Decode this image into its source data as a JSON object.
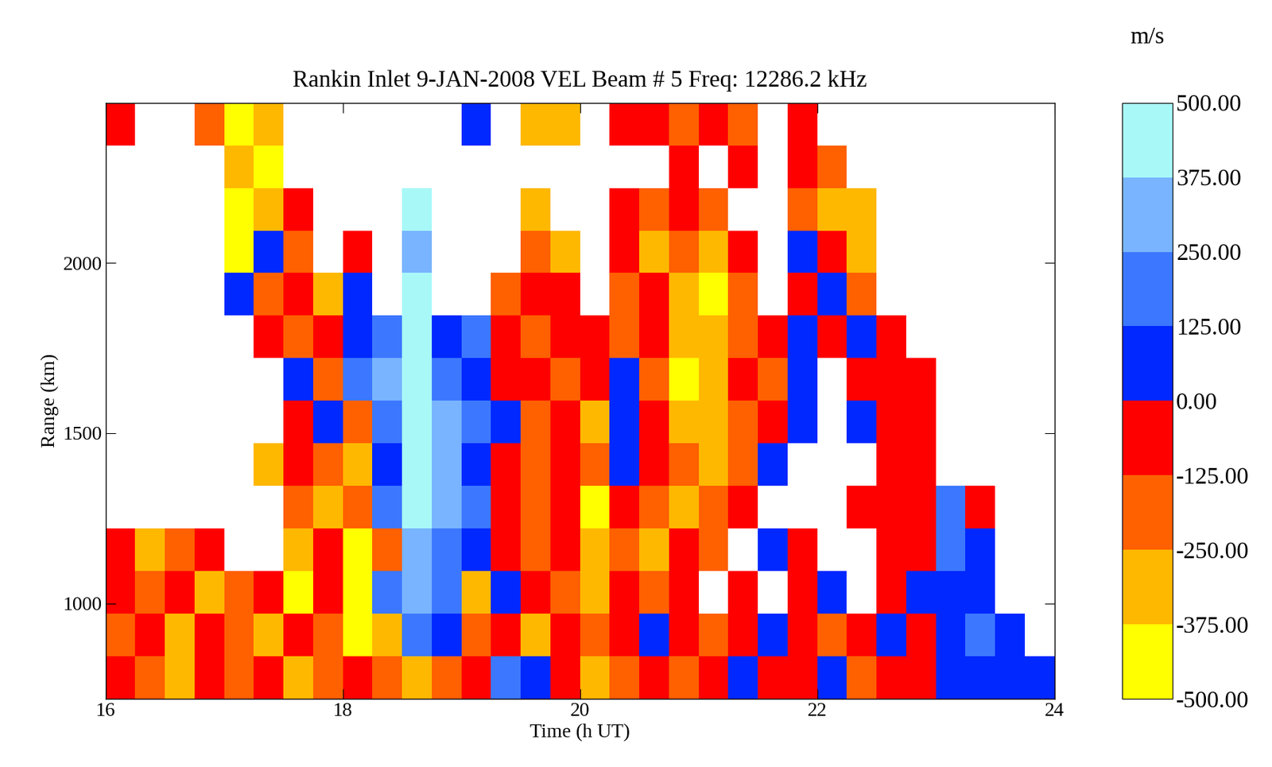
{
  "chart_data": {
    "type": "heatmap",
    "title": "Rankin Inlet 9-JAN-2008 VEL Beam # 5 Freq: 12286.2 kHz",
    "x_label": "Time (h UT)",
    "y_label": "Range (km)",
    "xlim": [
      16,
      24
    ],
    "xticks": [
      16,
      18,
      20,
      22,
      24
    ],
    "ylim": [
      720,
      2470
    ],
    "yticks": [
      1000,
      1500,
      2000
    ],
    "grid": false,
    "x_edges": [
      16,
      16.25,
      16.5,
      16.75,
      17,
      17.25,
      17.5,
      17.75,
      18,
      18.25,
      18.5,
      18.75,
      19,
      19.25,
      19.5,
      19.75,
      20,
      20.25,
      20.5,
      20.75,
      21,
      21.25,
      21.5,
      21.75,
      22,
      22.25,
      22.5,
      22.75,
      23,
      23.25,
      23.5,
      23.75,
      24
    ],
    "y_edges": [
      720,
      845,
      970,
      1095,
      1220,
      1345,
      1470,
      1595,
      1720,
      1845,
      1970,
      2095,
      2220,
      2345,
      2470
    ],
    "cells": [
      [
        -60,
        -190,
        -310,
        -60,
        -190,
        -60,
        -310,
        -190,
        -60,
        -190,
        -310,
        -190,
        -60,
        190,
        60,
        -60,
        -310,
        -190,
        -60,
        -190,
        -60,
        60,
        -60,
        -60,
        60,
        -190,
        -60,
        -60,
        60,
        60,
        60,
        60
      ],
      [
        -190,
        -60,
        -310,
        -60,
        -190,
        -310,
        -60,
        -190,
        -440,
        -310,
        190,
        60,
        -190,
        -60,
        -310,
        -60,
        -190,
        -60,
        60,
        -60,
        -190,
        -60,
        60,
        -60,
        -190,
        -60,
        60,
        -60,
        60,
        190,
        60,
        null
      ],
      [
        -60,
        -190,
        -60,
        -310,
        -190,
        -60,
        -440,
        -60,
        -440,
        190,
        310,
        190,
        -310,
        60,
        -60,
        -190,
        -310,
        -60,
        -190,
        -60,
        null,
        -60,
        null,
        -60,
        60,
        null,
        -60,
        60,
        60,
        60,
        null,
        null
      ],
      [
        -60,
        -310,
        -190,
        -60,
        null,
        null,
        -310,
        -60,
        -440,
        -190,
        310,
        190,
        60,
        -60,
        -190,
        -60,
        -310,
        -190,
        -310,
        -60,
        -190,
        null,
        60,
        -60,
        null,
        null,
        -60,
        -60,
        190,
        60,
        null,
        null
      ],
      [
        null,
        null,
        null,
        null,
        null,
        null,
        -190,
        -310,
        -190,
        190,
        440,
        310,
        190,
        -60,
        -190,
        -60,
        -440,
        -60,
        -190,
        -310,
        -190,
        -60,
        null,
        null,
        null,
        -60,
        -60,
        -60,
        190,
        -60,
        null,
        null
      ],
      [
        null,
        null,
        null,
        null,
        null,
        -310,
        -60,
        -190,
        -310,
        60,
        440,
        310,
        60,
        -60,
        -190,
        -60,
        -190,
        60,
        -60,
        -190,
        -310,
        -190,
        60,
        null,
        null,
        null,
        -60,
        -60,
        null,
        null,
        null,
        null
      ],
      [
        null,
        null,
        null,
        null,
        null,
        null,
        -60,
        60,
        -190,
        190,
        440,
        310,
        190,
        60,
        -190,
        -60,
        -310,
        60,
        -60,
        -310,
        -310,
        -190,
        -60,
        60,
        null,
        60,
        -60,
        -60,
        null,
        null,
        null,
        null
      ],
      [
        null,
        null,
        null,
        null,
        null,
        null,
        60,
        -190,
        190,
        310,
        440,
        190,
        60,
        -60,
        -60,
        -190,
        -60,
        60,
        -190,
        -440,
        -310,
        -60,
        -190,
        60,
        null,
        -60,
        -60,
        -60,
        null,
        null,
        null,
        null
      ],
      [
        null,
        null,
        null,
        null,
        null,
        -60,
        -190,
        -60,
        60,
        190,
        440,
        60,
        190,
        -60,
        -190,
        -60,
        -60,
        -190,
        -60,
        -310,
        -310,
        -190,
        -60,
        60,
        -60,
        60,
        -60,
        null,
        null,
        null,
        null,
        null
      ],
      [
        null,
        null,
        null,
        null,
        60,
        -190,
        -60,
        -310,
        60,
        null,
        440,
        null,
        null,
        -190,
        -60,
        -60,
        null,
        -190,
        -60,
        -310,
        -440,
        -190,
        null,
        -60,
        60,
        -190,
        null,
        null,
        null,
        null,
        null,
        null
      ],
      [
        null,
        null,
        null,
        null,
        -440,
        60,
        -190,
        null,
        -60,
        null,
        310,
        null,
        null,
        null,
        -190,
        -310,
        null,
        -60,
        -310,
        -190,
        -310,
        -60,
        null,
        60,
        -60,
        -310,
        null,
        null,
        null,
        null,
        null,
        null
      ],
      [
        null,
        null,
        null,
        null,
        -440,
        -310,
        -60,
        null,
        null,
        null,
        440,
        null,
        null,
        null,
        -310,
        null,
        null,
        -60,
        -190,
        -60,
        -190,
        null,
        null,
        -190,
        -310,
        -310,
        null,
        null,
        null,
        null,
        null,
        null
      ],
      [
        null,
        null,
        null,
        null,
        -310,
        -440,
        null,
        null,
        null,
        null,
        null,
        null,
        null,
        null,
        null,
        null,
        null,
        null,
        null,
        -60,
        null,
        -60,
        null,
        -60,
        -190,
        null,
        null,
        null,
        null,
        null,
        null,
        null
      ],
      [
        -60,
        null,
        null,
        -190,
        -440,
        -310,
        null,
        null,
        null,
        null,
        null,
        null,
        60,
        null,
        -310,
        -310,
        null,
        -60,
        -60,
        -190,
        -60,
        -190,
        null,
        -60,
        null,
        null,
        null,
        null,
        null,
        null,
        null,
        null
      ]
    ],
    "colorbar": {
      "label": "m/s",
      "range": [
        -500,
        500
      ],
      "colors": [
        "#ffff00",
        "#ffb800",
        "#ff6000",
        "#ff0000",
        "#0028ff",
        "#3c78ff",
        "#78b4ff",
        "#a8f8f8"
      ],
      "ticks": [
        {
          "value": -500,
          "label": "-500.00"
        },
        {
          "value": -375,
          "label": "-375.00"
        },
        {
          "value": -250,
          "label": "-250.00"
        },
        {
          "value": -125,
          "label": "-125.00"
        },
        {
          "value": 0,
          "label": "0.00"
        },
        {
          "value": 125,
          "label": "125.00"
        },
        {
          "value": 250,
          "label": "250.00"
        },
        {
          "value": 375,
          "label": "375.00"
        },
        {
          "value": 500,
          "label": "500.00"
        }
      ]
    }
  }
}
